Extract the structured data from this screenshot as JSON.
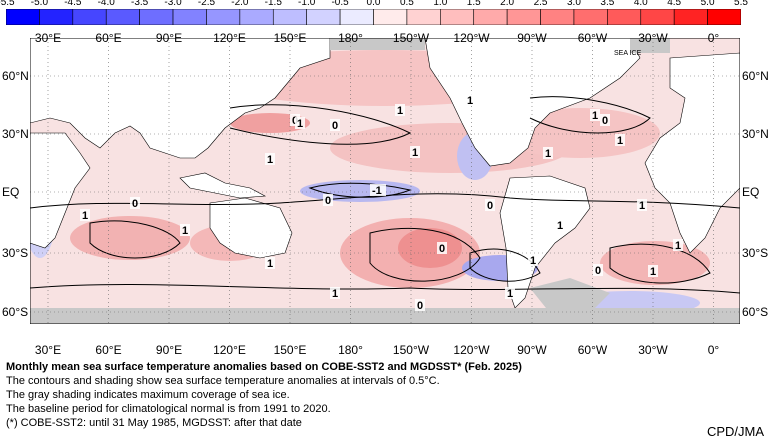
{
  "colorbar": {
    "ticks": [
      "-5.5",
      "-5.0",
      "-4.5",
      "-4.0",
      "-3.5",
      "-3.0",
      "-2.5",
      "-2.0",
      "-1.5",
      "-1.0",
      "-0.5",
      "0.0",
      "0.5",
      "1.0",
      "1.5",
      "2.0",
      "2.5",
      "3.0",
      "3.5",
      "4.0",
      "4.5",
      "5.0",
      "5.5"
    ],
    "colors": [
      "#0000ff",
      "#2323ff",
      "#4646ff",
      "#5a5aff",
      "#6e6eff",
      "#8282ff",
      "#9696ff",
      "#aaaaff",
      "#bebeff",
      "#d2d2ff",
      "#ebebff",
      "#ffebeb",
      "#ffd2d2",
      "#ffbebe",
      "#ffaaaa",
      "#ff9696",
      "#ff8282",
      "#ff6e6e",
      "#ff5a5a",
      "#ff4646",
      "#ff2323",
      "#ff0000"
    ]
  },
  "map": {
    "lon_labels": [
      "30°E",
      "60°E",
      "90°E",
      "120°E",
      "150°E",
      "180°",
      "150°W",
      "120°W",
      "90°W",
      "60°W",
      "30°W",
      "0°"
    ],
    "lat_labels": [
      "60°N",
      "30°N",
      "EQ",
      "30°S",
      "60°S"
    ],
    "sea_ice_label": "SEA ICE",
    "contour_labels": [
      "0",
      "1",
      "0",
      "1",
      "1",
      "0",
      "-1",
      "0",
      "1",
      "1",
      "0",
      "1",
      "1",
      "1",
      "0",
      "1",
      "0",
      "1",
      "1",
      "1",
      "1",
      "1",
      "1",
      "0",
      "1",
      "1",
      "1",
      "0"
    ],
    "land_color": "#ffffff",
    "sea_ice_color": "#c8c8c8",
    "warm_color": "#f6c8c8",
    "cool_color": "#c8c8f2"
  },
  "caption": {
    "title": "Monthly mean sea surface temperature anomalies based on COBE-SST2 and MGDSST* (Feb. 2025)",
    "lines": [
      "The contours and shading show sea surface temperature anomalies at intervals of 0.5°C.",
      "The gray shading indicates maximum coverage of sea ice.",
      "The baseline period for climatological normal is from 1991 to 2020.",
      "(*) COBE-SST2: until 31 May 1985, MGDSST: after that date"
    ]
  },
  "credit": "CPD/JMA"
}
